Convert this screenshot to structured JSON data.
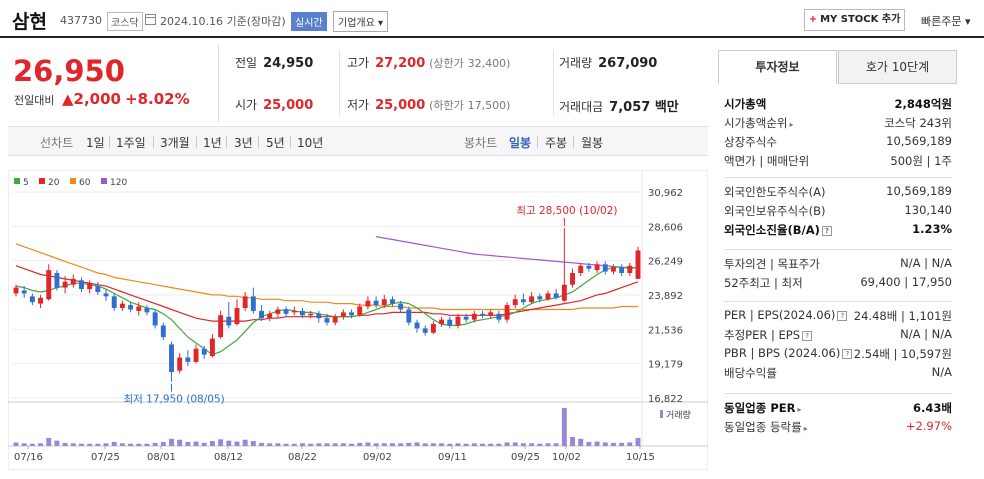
{
  "header": {
    "name": "삼현",
    "code": "437730",
    "market": "코스닥",
    "date": "2024.10.16  기준(장마감)",
    "realtime": "실시간",
    "overview": "기업개요 ▾",
    "mystock": "MY STOCK 추가",
    "quick_order": "빠른주문 ▾"
  },
  "price": {
    "current": "26,950",
    "diff_label": "전일대비",
    "diff": "▲2,000",
    "rate": "+8.02%"
  },
  "quote": {
    "prev_label": "전일",
    "prev": "24,950",
    "high_label": "고가",
    "high": "27,200",
    "upper_label": "(상한가",
    "upper": "32,400)",
    "volume_label": "거래량",
    "volume": "267,090",
    "open_label": "시가",
    "open": "25,000",
    "low_label": "저가",
    "low": "25,000",
    "lower_label": "(하한가",
    "lower": "17,500)",
    "amount_label": "거래대금",
    "amount": "7,057 백만"
  },
  "period_bar": {
    "line_chart": "선차트",
    "periods": [
      "1일",
      "1주일",
      "3개월",
      "1년",
      "3년",
      "5년",
      "10년"
    ],
    "candle_chart": "봉차트",
    "candles": [
      "일봉",
      "주봉",
      "월봉"
    ],
    "active_candle": "일봉"
  },
  "side": {
    "tab_invest": "투자정보",
    "tab_hoga": "호가 10단계",
    "rows1": [
      {
        "k": "시가총액",
        "v": "2,848억원",
        "bold": true
      },
      {
        "k": "시가총액순위",
        "v": "코스닥 243위"
      },
      {
        "k": "상장주식수",
        "v": "10,569,189"
      },
      {
        "k": "액면가 | 매매단위",
        "v": "500원 | 1주"
      }
    ],
    "rows2": [
      {
        "k": "외국인한도주식수(A)",
        "v": "10,569,189"
      },
      {
        "k": "외국인보유주식수(B)",
        "v": "130,140"
      },
      {
        "k": "외국인소진율(B/A)",
        "v": "1.23%",
        "bold": true
      }
    ],
    "rows3": [
      {
        "k": "투자의견 | 목표주가",
        "v": "N/A | N/A"
      },
      {
        "k": "52주최고 | 최저",
        "v": "69,400 | 17,950"
      }
    ],
    "rows4": [
      {
        "k": "PER | EPS(2024.06)",
        "v": "24.48배 | 1,101원"
      },
      {
        "k": "추정PER | EPS",
        "v": "N/A | N/A"
      },
      {
        "k": "PBR | BPS (2024.06)",
        "v": "2.54배 | 10,597원"
      },
      {
        "k": "배당수익률",
        "v": "N/A"
      }
    ],
    "rows5": [
      {
        "k": "동일업종 PER",
        "v": "6.43배",
        "bold": true
      },
      {
        "k": "동일업종 등락률",
        "v": "+2.97%",
        "up": true
      }
    ]
  },
  "colors": {
    "up": "#e0262b",
    "down": "#2f6fcf",
    "ma5": "#41a840",
    "ma20": "#e0262b",
    "ma60": "#f08a1c",
    "ma120": "#9b59d0",
    "volume": "#9a86d2"
  },
  "chart_data": {
    "type": "candlestick",
    "legend": [
      "5",
      "20",
      "60",
      "120"
    ],
    "y_ticks": [
      "30,962",
      "28,606",
      "26,249",
      "23,892",
      "21,536",
      "19,179",
      "16,822"
    ],
    "ylim": [
      16822,
      30962
    ],
    "x_ticks": [
      "07/16",
      "07/25",
      "08/01",
      "08/12",
      "08/22",
      "09/02",
      "09/11",
      "09/25",
      "10/02",
      "10/15"
    ],
    "high_annotation": "최고 28,500 (10/02)",
    "low_annotation": "최저 17,950 (08/05)",
    "volume_label": "거래량",
    "candles": [
      {
        "o": 24000,
        "c": 24400,
        "h": 24600,
        "l": 23800
      },
      {
        "o": 24200,
        "c": 24000,
        "h": 24500,
        "l": 23700
      },
      {
        "o": 23800,
        "c": 23400,
        "h": 24000,
        "l": 23200
      },
      {
        "o": 23300,
        "c": 23700,
        "h": 23900,
        "l": 23000
      },
      {
        "o": 23600,
        "c": 25600,
        "h": 26000,
        "l": 23500
      },
      {
        "o": 25400,
        "c": 24400,
        "h": 25600,
        "l": 24200
      },
      {
        "o": 24400,
        "c": 24800,
        "h": 25200,
        "l": 24000
      },
      {
        "o": 24600,
        "c": 25000,
        "h": 25300,
        "l": 24400
      },
      {
        "o": 24900,
        "c": 24300,
        "h": 25100,
        "l": 24100
      },
      {
        "o": 24300,
        "c": 24700,
        "h": 24900,
        "l": 24000
      },
      {
        "o": 24500,
        "c": 24100,
        "h": 24800,
        "l": 23900
      },
      {
        "o": 24000,
        "c": 23800,
        "h": 24300,
        "l": 23500
      },
      {
        "o": 23800,
        "c": 23000,
        "h": 24000,
        "l": 22800
      },
      {
        "o": 23000,
        "c": 23300,
        "h": 23500,
        "l": 22800
      },
      {
        "o": 23200,
        "c": 22900,
        "h": 23400,
        "l": 22700
      },
      {
        "o": 22800,
        "c": 23100,
        "h": 23400,
        "l": 22500
      },
      {
        "o": 23000,
        "c": 22700,
        "h": 23200,
        "l": 22500
      },
      {
        "o": 22700,
        "c": 21800,
        "h": 22900,
        "l": 21600
      },
      {
        "o": 21800,
        "c": 21000,
        "h": 22000,
        "l": 20800
      },
      {
        "o": 20500,
        "c": 18600,
        "h": 20700,
        "l": 17950
      },
      {
        "o": 18700,
        "c": 19600,
        "h": 19900,
        "l": 18500
      },
      {
        "o": 19600,
        "c": 19300,
        "h": 20100,
        "l": 19000
      },
      {
        "o": 19300,
        "c": 20200,
        "h": 20500,
        "l": 19200
      },
      {
        "o": 20200,
        "c": 19800,
        "h": 20400,
        "l": 19500
      },
      {
        "o": 19700,
        "c": 20900,
        "h": 21200,
        "l": 19600
      },
      {
        "o": 21000,
        "c": 22500,
        "h": 22800,
        "l": 20900
      },
      {
        "o": 22400,
        "c": 21800,
        "h": 23400,
        "l": 21600
      },
      {
        "o": 21900,
        "c": 23000,
        "h": 23600,
        "l": 21800
      },
      {
        "o": 23000,
        "c": 23800,
        "h": 24100,
        "l": 22800
      },
      {
        "o": 23800,
        "c": 22800,
        "h": 24400,
        "l": 22600
      },
      {
        "o": 22800,
        "c": 22300,
        "h": 23200,
        "l": 22100
      },
      {
        "o": 22300,
        "c": 22600,
        "h": 22800,
        "l": 22100
      },
      {
        "o": 22600,
        "c": 22900,
        "h": 23100,
        "l": 22300
      },
      {
        "o": 22900,
        "c": 22600,
        "h": 23100,
        "l": 22400
      },
      {
        "o": 22700,
        "c": 22800,
        "h": 23100,
        "l": 22500
      },
      {
        "o": 22800,
        "c": 22500,
        "h": 23000,
        "l": 22300
      },
      {
        "o": 22500,
        "c": 22600,
        "h": 22800,
        "l": 22300
      },
      {
        "o": 22600,
        "c": 22300,
        "h": 22800,
        "l": 22000
      },
      {
        "o": 22300,
        "c": 22000,
        "h": 22600,
        "l": 21800
      },
      {
        "o": 22000,
        "c": 22400,
        "h": 22600,
        "l": 21800
      },
      {
        "o": 22400,
        "c": 22700,
        "h": 22900,
        "l": 22200
      },
      {
        "o": 22700,
        "c": 22500,
        "h": 22900,
        "l": 22300
      },
      {
        "o": 22500,
        "c": 23100,
        "h": 23300,
        "l": 22400
      },
      {
        "o": 23100,
        "c": 23500,
        "h": 23800,
        "l": 22900
      },
      {
        "o": 23500,
        "c": 23200,
        "h": 23800,
        "l": 23000
      },
      {
        "o": 23200,
        "c": 23600,
        "h": 23900,
        "l": 23000
      },
      {
        "o": 23600,
        "c": 23300,
        "h": 23800,
        "l": 23100
      },
      {
        "o": 23300,
        "c": 22900,
        "h": 23500,
        "l": 22700
      },
      {
        "o": 22900,
        "c": 22000,
        "h": 23100,
        "l": 21800
      },
      {
        "o": 22000,
        "c": 21600,
        "h": 22200,
        "l": 21300
      },
      {
        "o": 21600,
        "c": 21300,
        "h": 21800,
        "l": 21100
      },
      {
        "o": 21300,
        "c": 21900,
        "h": 22100,
        "l": 21200
      },
      {
        "o": 21900,
        "c": 22200,
        "h": 22400,
        "l": 21700
      },
      {
        "o": 22200,
        "c": 21800,
        "h": 22400,
        "l": 21600
      },
      {
        "o": 21800,
        "c": 22400,
        "h": 22600,
        "l": 21600
      },
      {
        "o": 22400,
        "c": 22200,
        "h": 22600,
        "l": 22000
      },
      {
        "o": 22200,
        "c": 22600,
        "h": 22800,
        "l": 22000
      },
      {
        "o": 22600,
        "c": 22500,
        "h": 22800,
        "l": 22300
      },
      {
        "o": 22500,
        "c": 22700,
        "h": 22900,
        "l": 22300
      },
      {
        "o": 22600,
        "c": 22200,
        "h": 22800,
        "l": 22000
      },
      {
        "o": 22200,
        "c": 23200,
        "h": 23400,
        "l": 22000
      },
      {
        "o": 23200,
        "c": 23600,
        "h": 23900,
        "l": 23000
      },
      {
        "o": 23600,
        "c": 23400,
        "h": 24000,
        "l": 23200
      },
      {
        "o": 23400,
        "c": 23800,
        "h": 24100,
        "l": 23300
      },
      {
        "o": 23800,
        "c": 23600,
        "h": 24000,
        "l": 23400
      },
      {
        "o": 23600,
        "c": 24000,
        "h": 24200,
        "l": 23500
      },
      {
        "o": 24000,
        "c": 23700,
        "h": 24300,
        "l": 23600
      },
      {
        "o": 23500,
        "c": 24600,
        "h": 28500,
        "l": 23400
      },
      {
        "o": 24600,
        "c": 25400,
        "h": 25700,
        "l": 24400
      },
      {
        "o": 25400,
        "c": 25900,
        "h": 26100,
        "l": 25200
      },
      {
        "o": 25900,
        "c": 25700,
        "h": 26100,
        "l": 25500
      },
      {
        "o": 25600,
        "c": 26000,
        "h": 26200,
        "l": 25400
      },
      {
        "o": 26000,
        "c": 25500,
        "h": 26200,
        "l": 25300
      },
      {
        "o": 25500,
        "c": 25800,
        "h": 26000,
        "l": 25300
      },
      {
        "o": 25800,
        "c": 25400,
        "h": 26000,
        "l": 25200
      },
      {
        "o": 25400,
        "c": 25900,
        "h": 26100,
        "l": 25200
      },
      {
        "o": 25000,
        "c": 26950,
        "h": 27200,
        "l": 25000
      }
    ],
    "volumes": [
      8,
      6,
      5,
      6,
      18,
      12,
      7,
      6,
      5,
      5,
      5,
      6,
      9,
      6,
      5,
      5,
      5,
      7,
      9,
      16,
      14,
      9,
      10,
      7,
      11,
      15,
      12,
      10,
      14,
      11,
      7,
      6,
      6,
      5,
      5,
      6,
      5,
      6,
      6,
      6,
      6,
      5,
      7,
      8,
      6,
      6,
      6,
      6,
      7,
      8,
      6,
      6,
      6,
      5,
      6,
      5,
      6,
      5,
      5,
      5,
      8,
      8,
      6,
      6,
      5,
      6,
      6,
      85,
      20,
      16,
      9,
      10,
      8,
      7,
      7,
      8,
      18
    ],
    "ma5": [
      24500,
      24400,
      24200,
      24100,
      24200,
      24400,
      24500,
      24700,
      24700,
      24600,
      24500,
      24300,
      24000,
      23700,
      23400,
      23200,
      23000,
      22900,
      22600,
      22200,
      21600,
      21000,
      20600,
      20200,
      19800,
      20000,
      20400,
      20800,
      21400,
      22000,
      22400,
      22600,
      22800,
      22900,
      22800,
      22700,
      22700,
      22600,
      22500,
      22400,
      22400,
      22400,
      22500,
      22700,
      22900,
      23100,
      23300,
      23400,
      23300,
      23000,
      22600,
      22200,
      21900,
      21800,
      21800,
      21900,
      22100,
      22200,
      22300,
      22400,
      22500,
      22700,
      23000,
      23300,
      23500,
      23600,
      23700,
      23900,
      24100,
      24500,
      24900,
      25300,
      25600,
      25800,
      25800,
      25700,
      25800
    ],
    "ma20": [
      25900,
      25700,
      25500,
      25300,
      25200,
      25100,
      25000,
      24900,
      24800,
      24700,
      24600,
      24500,
      24300,
      24100,
      23900,
      23700,
      23500,
      23300,
      23100,
      22900,
      22700,
      22500,
      22300,
      22200,
      22100,
      22100,
      22100,
      22100,
      22100,
      22200,
      22200,
      22300,
      22300,
      22400,
      22400,
      22400,
      22400,
      22400,
      22400,
      22400,
      22400,
      22400,
      22500,
      22500,
      22600,
      22600,
      22700,
      22700,
      22700,
      22700,
      22700,
      22600,
      22600,
      22500,
      22500,
      22500,
      22500,
      22500,
      22500,
      22500,
      22600,
      22700,
      22800,
      22900,
      23000,
      23100,
      23200,
      23300,
      23400,
      23500,
      23700,
      23900,
      24000,
      24200,
      24400,
      24600,
      24800
    ],
    "ma60": [
      27400,
      27200,
      27000,
      26800,
      26600,
      26400,
      26200,
      26000,
      25800,
      25600,
      25400,
      25300,
      25100,
      25000,
      24900,
      24800,
      24700,
      24600,
      24500,
      24400,
      24300,
      24200,
      24100,
      24000,
      23900,
      23900,
      23800,
      23800,
      23700,
      23700,
      23600,
      23600,
      23600,
      23500,
      23500,
      23500,
      23400,
      23400,
      23400,
      23300,
      23300,
      23300,
      23200,
      23200,
      23200,
      23100,
      23100,
      23100,
      23000,
      23000,
      23000,
      23000,
      22900,
      22900,
      22900,
      22900,
      22900,
      22900,
      22900,
      22900,
      22900,
      22900,
      22900,
      22900,
      22900,
      22900,
      22900,
      22900,
      22900,
      23000,
      23000,
      23000,
      23000,
      23000,
      23100,
      23100,
      23100
    ],
    "ma120_start": 44,
    "ma120": [
      27900,
      27800,
      27700,
      27600,
      27500,
      27400,
      27300,
      27200,
      27100,
      27000,
      26900,
      26800,
      26700,
      26650,
      26600,
      26550,
      26500,
      26450,
      26400,
      26350,
      26300,
      26250,
      26200,
      26150,
      26100,
      26050,
      26000,
      25950,
      25900,
      25850,
      25800,
      25780,
      25760
    ]
  }
}
